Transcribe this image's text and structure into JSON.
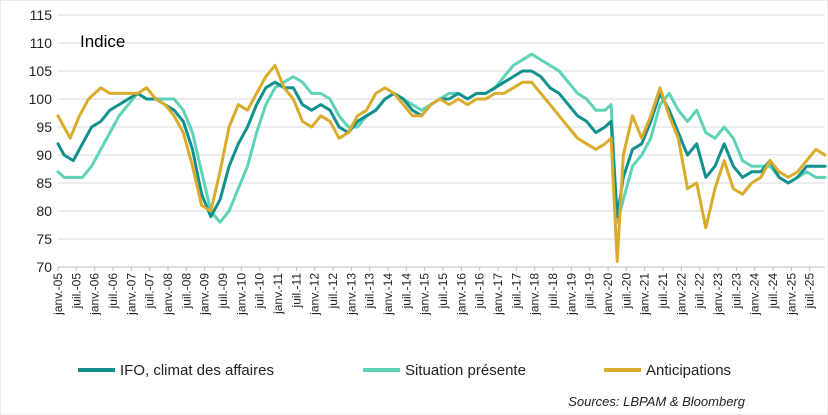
{
  "chart_data": {
    "type": "line",
    "ylabel": "Indice",
    "source": "Sources: LBPAM & Bloomberg",
    "ylim": [
      70,
      115
    ],
    "yticks": [
      70,
      75,
      80,
      85,
      90,
      95,
      100,
      105,
      110,
      115
    ],
    "xlim": [
      "2005-01",
      "2025-12"
    ],
    "xtick_labels": [
      "janv.-05",
      "juil.-05",
      "janv.-06",
      "juil.-06",
      "janv.-07",
      "juil.-07",
      "janv.-08",
      "juil.-08",
      "janv.-09",
      "juil.-09",
      "janv.-10",
      "juil.-10",
      "janv.-11",
      "juil.-11",
      "janv.-12",
      "juil.-12",
      "janv.-13",
      "juil.-13",
      "janv.-14",
      "juil.-14",
      "janv.-15",
      "juil.-15",
      "janv.-16",
      "juil.-16",
      "janv.-17",
      "juil.-17",
      "janv.-18",
      "juil.-18",
      "janv.-19",
      "juil.-19",
      "janv.-20",
      "juil.-20",
      "janv.-21",
      "juil.-21",
      "janv.-22",
      "juil.-22",
      "janv.-23",
      "juil.-23",
      "janv.-24",
      "juil.-24",
      "janv.-25",
      "juil.-25"
    ],
    "grid": "horizontal",
    "legend_position": "bottom",
    "series": [
      {
        "name": "IFO, climat des affaires",
        "color": "#12908e",
        "points": [
          [
            "2005-01",
            92
          ],
          [
            "2005-03",
            90
          ],
          [
            "2005-06",
            89
          ],
          [
            "2005-09",
            92
          ],
          [
            "2005-12",
            95
          ],
          [
            "2006-03",
            96
          ],
          [
            "2006-06",
            98
          ],
          [
            "2006-09",
            99
          ],
          [
            "2006-12",
            100
          ],
          [
            "2007-03",
            101
          ],
          [
            "2007-06",
            100
          ],
          [
            "2007-09",
            100
          ],
          [
            "2007-12",
            99
          ],
          [
            "2008-03",
            98
          ],
          [
            "2008-06",
            96
          ],
          [
            "2008-09",
            91
          ],
          [
            "2008-12",
            83
          ],
          [
            "2009-03",
            79
          ],
          [
            "2009-06",
            82
          ],
          [
            "2009-09",
            88
          ],
          [
            "2009-12",
            92
          ],
          [
            "2010-03",
            95
          ],
          [
            "2010-06",
            99
          ],
          [
            "2010-09",
            102
          ],
          [
            "2010-12",
            103
          ],
          [
            "2011-03",
            102
          ],
          [
            "2011-06",
            102
          ],
          [
            "2011-09",
            99
          ],
          [
            "2011-12",
            98
          ],
          [
            "2012-03",
            99
          ],
          [
            "2012-06",
            98
          ],
          [
            "2012-09",
            95
          ],
          [
            "2012-12",
            94
          ],
          [
            "2013-03",
            96
          ],
          [
            "2013-06",
            97
          ],
          [
            "2013-09",
            98
          ],
          [
            "2013-12",
            100
          ],
          [
            "2014-03",
            101
          ],
          [
            "2014-06",
            100
          ],
          [
            "2014-09",
            98
          ],
          [
            "2014-12",
            97
          ],
          [
            "2015-03",
            99
          ],
          [
            "2015-06",
            100
          ],
          [
            "2015-09",
            100
          ],
          [
            "2015-12",
            101
          ],
          [
            "2016-03",
            100
          ],
          [
            "2016-06",
            101
          ],
          [
            "2016-09",
            101
          ],
          [
            "2016-12",
            102
          ],
          [
            "2017-03",
            103
          ],
          [
            "2017-06",
            104
          ],
          [
            "2017-09",
            105
          ],
          [
            "2017-12",
            105
          ],
          [
            "2018-03",
            104
          ],
          [
            "2018-06",
            102
          ],
          [
            "2018-09",
            101
          ],
          [
            "2018-12",
            99
          ],
          [
            "2019-03",
            97
          ],
          [
            "2019-06",
            96
          ],
          [
            "2019-09",
            94
          ],
          [
            "2019-12",
            95
          ],
          [
            "2020-02",
            96
          ],
          [
            "2020-04",
            79
          ],
          [
            "2020-06",
            86
          ],
          [
            "2020-09",
            91
          ],
          [
            "2020-12",
            92
          ],
          [
            "2021-03",
            96
          ],
          [
            "2021-06",
            101
          ],
          [
            "2021-09",
            98
          ],
          [
            "2021-12",
            94
          ],
          [
            "2022-03",
            90
          ],
          [
            "2022-06",
            92
          ],
          [
            "2022-09",
            86
          ],
          [
            "2022-12",
            88
          ],
          [
            "2023-03",
            92
          ],
          [
            "2023-06",
            88
          ],
          [
            "2023-09",
            86
          ],
          [
            "2023-12",
            87
          ],
          [
            "2024-03",
            87
          ],
          [
            "2024-06",
            89
          ],
          [
            "2024-09",
            86
          ],
          [
            "2024-12",
            85
          ],
          [
            "2025-03",
            86
          ],
          [
            "2025-06",
            88
          ],
          [
            "2025-09",
            88
          ],
          [
            "2025-12",
            88
          ]
        ]
      },
      {
        "name": "Situation présente",
        "color": "#5fd3b8",
        "points": [
          [
            "2005-01",
            87
          ],
          [
            "2005-03",
            86
          ],
          [
            "2005-06",
            86
          ],
          [
            "2005-09",
            86
          ],
          [
            "2005-12",
            88
          ],
          [
            "2006-03",
            91
          ],
          [
            "2006-06",
            94
          ],
          [
            "2006-09",
            97
          ],
          [
            "2006-12",
            99
          ],
          [
            "2007-03",
            101
          ],
          [
            "2007-06",
            100
          ],
          [
            "2007-09",
            100
          ],
          [
            "2007-12",
            100
          ],
          [
            "2008-03",
            100
          ],
          [
            "2008-06",
            98
          ],
          [
            "2008-09",
            94
          ],
          [
            "2008-12",
            87
          ],
          [
            "2009-03",
            80
          ],
          [
            "2009-06",
            78
          ],
          [
            "2009-09",
            80
          ],
          [
            "2009-12",
            84
          ],
          [
            "2010-03",
            88
          ],
          [
            "2010-06",
            94
          ],
          [
            "2010-09",
            99
          ],
          [
            "2010-12",
            102
          ],
          [
            "2011-03",
            103
          ],
          [
            "2011-06",
            104
          ],
          [
            "2011-09",
            103
          ],
          [
            "2011-12",
            101
          ],
          [
            "2012-03",
            101
          ],
          [
            "2012-06",
            100
          ],
          [
            "2012-09",
            97
          ],
          [
            "2012-12",
            95
          ],
          [
            "2013-03",
            95
          ],
          [
            "2013-06",
            97
          ],
          [
            "2013-09",
            98
          ],
          [
            "2013-12",
            100
          ],
          [
            "2014-03",
            101
          ],
          [
            "2014-06",
            100
          ],
          [
            "2014-09",
            99
          ],
          [
            "2014-12",
            98
          ],
          [
            "2015-03",
            99
          ],
          [
            "2015-06",
            100
          ],
          [
            "2015-09",
            101
          ],
          [
            "2015-12",
            101
          ],
          [
            "2016-03",
            100
          ],
          [
            "2016-06",
            101
          ],
          [
            "2016-09",
            101
          ],
          [
            "2016-12",
            102
          ],
          [
            "2017-03",
            104
          ],
          [
            "2017-06",
            106
          ],
          [
            "2017-09",
            107
          ],
          [
            "2017-12",
            108
          ],
          [
            "2018-03",
            107
          ],
          [
            "2018-06",
            106
          ],
          [
            "2018-09",
            105
          ],
          [
            "2018-12",
            103
          ],
          [
            "2019-03",
            101
          ],
          [
            "2019-06",
            100
          ],
          [
            "2019-09",
            98
          ],
          [
            "2019-12",
            98
          ],
          [
            "2020-02",
            99
          ],
          [
            "2020-04",
            78
          ],
          [
            "2020-06",
            82
          ],
          [
            "2020-09",
            88
          ],
          [
            "2020-12",
            90
          ],
          [
            "2021-03",
            93
          ],
          [
            "2021-06",
            99
          ],
          [
            "2021-09",
            101
          ],
          [
            "2021-12",
            98
          ],
          [
            "2022-03",
            96
          ],
          [
            "2022-06",
            98
          ],
          [
            "2022-09",
            94
          ],
          [
            "2022-12",
            93
          ],
          [
            "2023-03",
            95
          ],
          [
            "2023-06",
            93
          ],
          [
            "2023-09",
            89
          ],
          [
            "2023-12",
            88
          ],
          [
            "2024-03",
            88
          ],
          [
            "2024-06",
            88
          ],
          [
            "2024-09",
            86
          ],
          [
            "2024-12",
            85
          ],
          [
            "2025-03",
            86
          ],
          [
            "2025-06",
            87
          ],
          [
            "2025-09",
            86
          ],
          [
            "2025-12",
            86
          ]
        ]
      },
      {
        "name": "Anticipations",
        "color": "#d9ac2b",
        "points": [
          [
            "2005-01",
            97
          ],
          [
            "2005-03",
            95
          ],
          [
            "2005-05",
            93
          ],
          [
            "2005-08",
            97
          ],
          [
            "2005-11",
            100
          ],
          [
            "2006-03",
            102
          ],
          [
            "2006-06",
            101
          ],
          [
            "2006-09",
            101
          ],
          [
            "2006-12",
            101
          ],
          [
            "2007-03",
            101
          ],
          [
            "2007-06",
            102
          ],
          [
            "2007-09",
            100
          ],
          [
            "2007-12",
            99
          ],
          [
            "2008-03",
            97
          ],
          [
            "2008-06",
            94
          ],
          [
            "2008-09",
            88
          ],
          [
            "2008-12",
            81
          ],
          [
            "2009-03",
            80
          ],
          [
            "2009-06",
            87
          ],
          [
            "2009-09",
            95
          ],
          [
            "2009-12",
            99
          ],
          [
            "2010-03",
            98
          ],
          [
            "2010-06",
            101
          ],
          [
            "2010-09",
            104
          ],
          [
            "2010-12",
            106
          ],
          [
            "2011-03",
            102
          ],
          [
            "2011-06",
            100
          ],
          [
            "2011-09",
            96
          ],
          [
            "2011-12",
            95
          ],
          [
            "2012-03",
            97
          ],
          [
            "2012-06",
            96
          ],
          [
            "2012-09",
            93
          ],
          [
            "2012-12",
            94
          ],
          [
            "2013-03",
            97
          ],
          [
            "2013-06",
            98
          ],
          [
            "2013-09",
            101
          ],
          [
            "2013-12",
            102
          ],
          [
            "2014-03",
            101
          ],
          [
            "2014-06",
            99
          ],
          [
            "2014-09",
            97
          ],
          [
            "2014-12",
            97
          ],
          [
            "2015-03",
            99
          ],
          [
            "2015-06",
            100
          ],
          [
            "2015-09",
            99
          ],
          [
            "2015-12",
            100
          ],
          [
            "2016-03",
            99
          ],
          [
            "2016-06",
            100
          ],
          [
            "2016-09",
            100
          ],
          [
            "2016-12",
            101
          ],
          [
            "2017-03",
            101
          ],
          [
            "2017-06",
            102
          ],
          [
            "2017-09",
            103
          ],
          [
            "2017-12",
            103
          ],
          [
            "2018-03",
            101
          ],
          [
            "2018-06",
            99
          ],
          [
            "2018-09",
            97
          ],
          [
            "2018-12",
            95
          ],
          [
            "2019-03",
            93
          ],
          [
            "2019-06",
            92
          ],
          [
            "2019-09",
            91
          ],
          [
            "2019-12",
            92
          ],
          [
            "2020-02",
            93
          ],
          [
            "2020-04",
            71
          ],
          [
            "2020-06",
            90
          ],
          [
            "2020-09",
            97
          ],
          [
            "2020-12",
            93
          ],
          [
            "2021-03",
            97
          ],
          [
            "2021-06",
            102
          ],
          [
            "2021-09",
            97
          ],
          [
            "2021-12",
            93
          ],
          [
            "2022-03",
            84
          ],
          [
            "2022-06",
            85
          ],
          [
            "2022-09",
            77
          ],
          [
            "2022-12",
            84
          ],
          [
            "2023-03",
            89
          ],
          [
            "2023-06",
            84
          ],
          [
            "2023-09",
            83
          ],
          [
            "2023-12",
            85
          ],
          [
            "2024-03",
            86
          ],
          [
            "2024-06",
            89
          ],
          [
            "2024-09",
            87
          ],
          [
            "2024-12",
            86
          ],
          [
            "2025-03",
            87
          ],
          [
            "2025-06",
            89
          ],
          [
            "2025-09",
            91
          ],
          [
            "2025-12",
            90
          ]
        ]
      }
    ]
  }
}
